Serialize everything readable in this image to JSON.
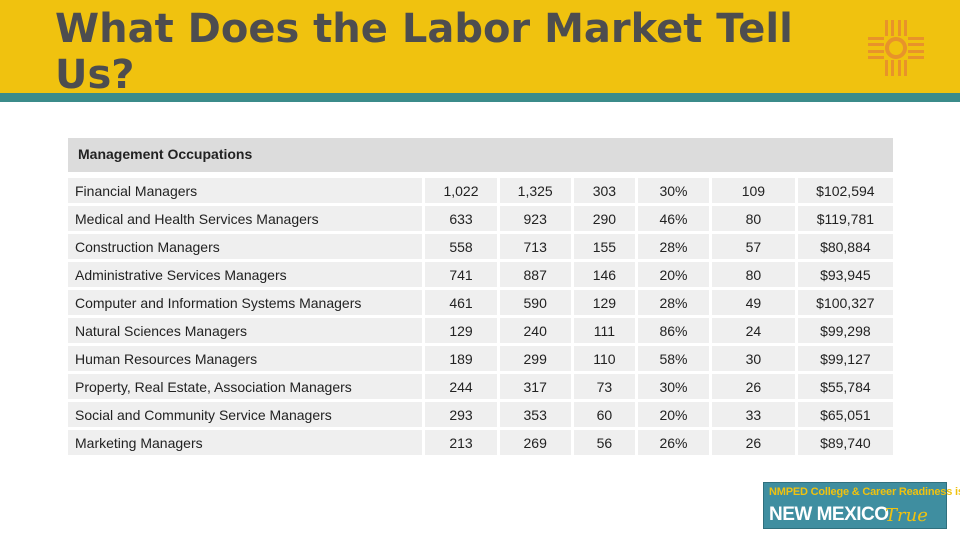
{
  "slide": {
    "title": "What Does the Labor Market Tell Us?"
  },
  "table": {
    "section_label": "Management Occupations",
    "rows": [
      {
        "occupation": "Financial Managers",
        "c1": "1,022",
        "c2": "1,325",
        "c3": "303",
        "c4": "30%",
        "c5": "109",
        "c6": "$102,594"
      },
      {
        "occupation": "Medical and Health Services Managers",
        "c1": "633",
        "c2": "923",
        "c3": "290",
        "c4": "46%",
        "c5": "80",
        "c6": "$119,781"
      },
      {
        "occupation": "Construction Managers",
        "c1": "558",
        "c2": "713",
        "c3": "155",
        "c4": "28%",
        "c5": "57",
        "c6": "$80,884"
      },
      {
        "occupation": "Administrative Services Managers",
        "c1": "741",
        "c2": "887",
        "c3": "146",
        "c4": "20%",
        "c5": "80",
        "c6": "$93,945"
      },
      {
        "occupation": "Computer and Information Systems Managers",
        "c1": "461",
        "c2": "590",
        "c3": "129",
        "c4": "28%",
        "c5": "49",
        "c6": "$100,327"
      },
      {
        "occupation": "Natural Sciences Managers",
        "c1": "129",
        "c2": "240",
        "c3": "111",
        "c4": "86%",
        "c5": "24",
        "c6": "$99,298"
      },
      {
        "occupation": "Human Resources Managers",
        "c1": "189",
        "c2": "299",
        "c3": "110",
        "c4": "58%",
        "c5": "30",
        "c6": "$99,127"
      },
      {
        "occupation": "Property, Real Estate, Association Managers",
        "c1": "244",
        "c2": "317",
        "c3": "73",
        "c4": "30%",
        "c5": "26",
        "c6": "$55,784"
      },
      {
        "occupation": "Social and Community Service Managers",
        "c1": "293",
        "c2": "353",
        "c3": "60",
        "c4": "20%",
        "c5": "33",
        "c6": "$65,051"
      },
      {
        "occupation": "Marketing Managers",
        "c1": "213",
        "c2": "269",
        "c3": "56",
        "c4": "26%",
        "c5": "26",
        "c6": "$89,740"
      }
    ]
  },
  "logo": {
    "line1": "NMPED College & Career Readiness is",
    "line2": "NEW MEXICO",
    "line3": "True"
  },
  "colors": {
    "header_yellow": "#f0c20f",
    "stripe_teal": "#3b8b8a",
    "zia_orange": "#e8932a"
  },
  "icons": {
    "zia": "zia-sun-symbol-icon"
  }
}
